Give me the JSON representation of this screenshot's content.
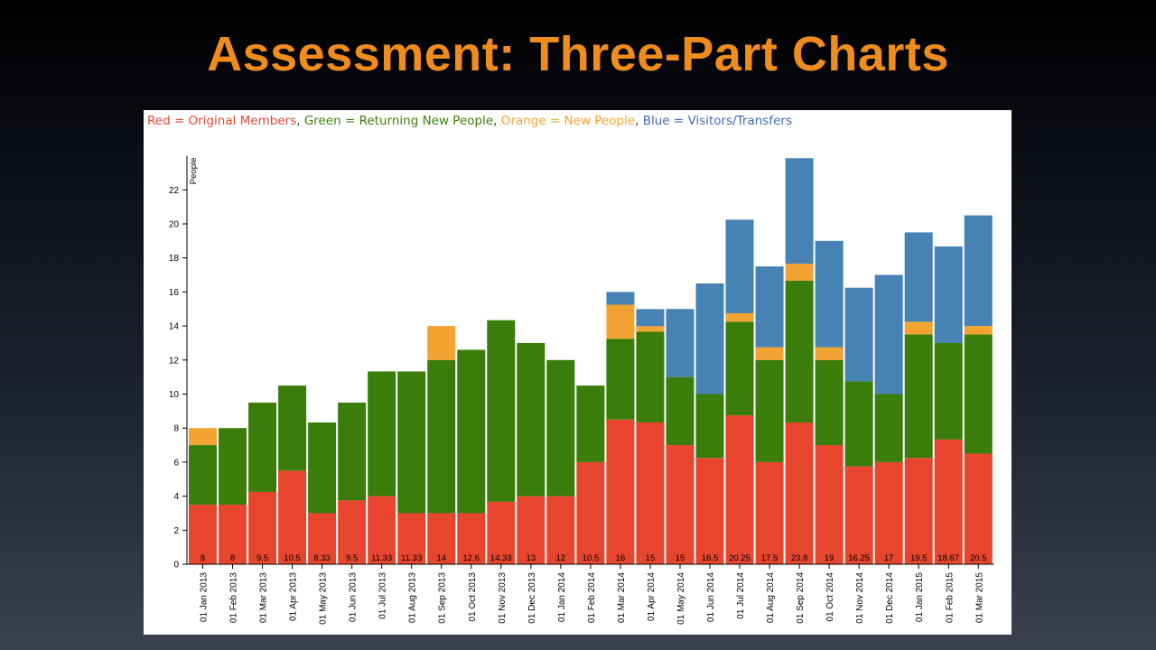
{
  "slide": {
    "title": "Assessment: Three-Part Charts"
  },
  "legend": {
    "red": "Red = Original Members",
    "green": "Green = Returning New People",
    "orange": "Orange = New People",
    "blue": "Blue = Visitors/Transfers",
    "separator": ", "
  },
  "colors": {
    "red": "#e8452e",
    "green": "#3a7d0a",
    "orange": "#f2a332",
    "blue": "#4682b4"
  },
  "chart_data": {
    "type": "bar",
    "stacked": true,
    "ylabel": "People",
    "xlabel": "",
    "ylim": [
      0,
      24
    ],
    "yticks": [
      0,
      2,
      4,
      6,
      8,
      10,
      12,
      14,
      16,
      18,
      20,
      22
    ],
    "grid": false,
    "categories": [
      "01 Jan 2013",
      "01 Feb 2013",
      "01 Mar 2013",
      "01 Apr 2013",
      "01 May 2013",
      "01 Jun 2013",
      "01 Jul 2013",
      "01 Aug 2013",
      "01 Sep 2013",
      "01 Oct 2013",
      "01 Nov 2013",
      "01 Dec 2013",
      "01 Jan 2014",
      "01 Feb 2014",
      "01 Mar 2014",
      "01 Apr 2014",
      "01 May 2014",
      "01 Jun 2014",
      "01 Jul 2014",
      "01 Aug 2014",
      "01 Sep 2014",
      "01 Oct 2014",
      "01 Nov 2014",
      "01 Dec 2014",
      "01 Jan 2015",
      "01 Feb 2015",
      "01 Mar 2015"
    ],
    "series": [
      {
        "name": "Original Members",
        "color": "red",
        "values": [
          3.5,
          3.5,
          4.25,
          5.5,
          3,
          3.75,
          4,
          3,
          3,
          3,
          3.67,
          4,
          4,
          6,
          8.5,
          8.33,
          7,
          6.25,
          8.75,
          6,
          8.33,
          7,
          5.75,
          6,
          6.25,
          7.33,
          6.5
        ]
      },
      {
        "name": "Returning New People",
        "color": "green",
        "values": [
          3.5,
          4.5,
          5.25,
          5,
          5.33,
          5.75,
          7.33,
          8.33,
          9,
          9.6,
          10.67,
          9,
          8,
          4.5,
          4.75,
          5.33,
          4,
          3.75,
          5.5,
          6,
          8.33,
          5,
          5,
          4,
          7.25,
          5.67,
          7
        ]
      },
      {
        "name": "New People",
        "color": "orange",
        "values": [
          1,
          0,
          0,
          0,
          0,
          0,
          0,
          0,
          2,
          0,
          0,
          0,
          0,
          0,
          2,
          0.33,
          0,
          0,
          0.5,
          0.75,
          1,
          0.75,
          0,
          0,
          0.75,
          0,
          0.5
        ]
      },
      {
        "name": "Visitors/Transfers",
        "color": "blue",
        "values": [
          0,
          0,
          0,
          0,
          0,
          0,
          0,
          0,
          0,
          0,
          0,
          0,
          0,
          0,
          0.75,
          1,
          4,
          6.5,
          5.5,
          4.75,
          6.2,
          6.25,
          5.5,
          7,
          5.25,
          5.67,
          6.5
        ]
      }
    ],
    "totals": [
      "8",
      "8",
      "9.5",
      "10.5",
      "8.33",
      "9.5",
      "11.33",
      "11.33",
      "14",
      "12.6",
      "14.33",
      "13",
      "12",
      "10.5",
      "16",
      "15",
      "15",
      "16.5",
      "20.25",
      "17.5",
      "23.8",
      "19",
      "16.25",
      "17",
      "19.5",
      "18.67",
      "20.5"
    ]
  }
}
